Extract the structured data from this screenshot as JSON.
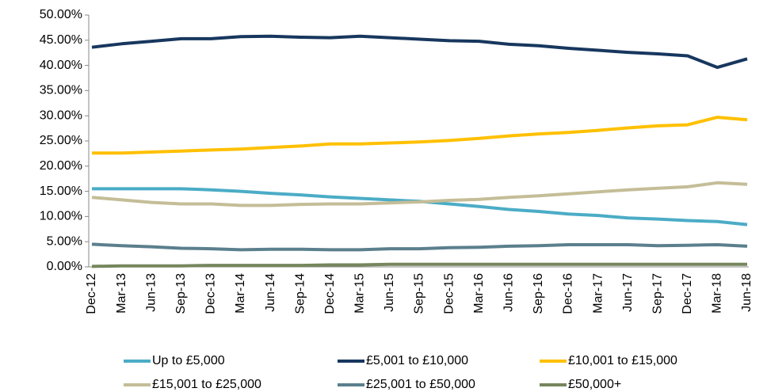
{
  "chart_data": {
    "type": "line",
    "categories": [
      "Dec-12",
      "Mar-13",
      "Jun-13",
      "Sep-13",
      "Dec-13",
      "Mar-14",
      "Jun-14",
      "Sep-14",
      "Dec-14",
      "Mar-15",
      "Jun-15",
      "Sep-15",
      "Dec-15",
      "Mar-16",
      "Jun-16",
      "Sep-16",
      "Dec-16",
      "Mar-17",
      "Jun-17",
      "Sep-17",
      "Dec-17",
      "Mar-18",
      "Jun-18"
    ],
    "series": [
      {
        "name": "Up to £5,000",
        "color": "#4bacc6",
        "values": [
          15.5,
          15.5,
          15.5,
          15.5,
          15.3,
          15.0,
          14.6,
          14.3,
          13.9,
          13.6,
          13.3,
          13.0,
          12.5,
          12.0,
          11.4,
          11.0,
          10.5,
          10.2,
          9.7,
          9.5,
          9.2,
          9.0,
          8.4
        ]
      },
      {
        "name": "£5,001 to £10,000",
        "color": "#17375e",
        "values": [
          43.6,
          44.3,
          44.8,
          45.3,
          45.3,
          45.7,
          45.8,
          45.6,
          45.5,
          45.8,
          45.5,
          45.2,
          44.9,
          44.8,
          44.2,
          43.9,
          43.4,
          43.0,
          42.6,
          42.3,
          41.9,
          39.6,
          41.3
        ]
      },
      {
        "name": "£10,001 to £15,000",
        "color": "#ffc000",
        "values": [
          22.6,
          22.6,
          22.8,
          23.0,
          23.2,
          23.4,
          23.7,
          24.0,
          24.4,
          24.4,
          24.6,
          24.8,
          25.1,
          25.5,
          26.0,
          26.4,
          26.7,
          27.1,
          27.6,
          28.0,
          28.2,
          29.7,
          29.2
        ]
      },
      {
        "name": "£15,001 to £25,000",
        "color": "#c4bd97",
        "values": [
          13.8,
          13.3,
          12.8,
          12.5,
          12.5,
          12.2,
          12.2,
          12.4,
          12.5,
          12.5,
          12.7,
          12.9,
          13.2,
          13.4,
          13.8,
          14.1,
          14.5,
          14.9,
          15.3,
          15.6,
          15.9,
          16.7,
          16.4
        ]
      },
      {
        "name": "£25,001 to £50,000",
        "color": "#5b7f8d",
        "values": [
          4.5,
          4.2,
          4.0,
          3.7,
          3.6,
          3.4,
          3.5,
          3.5,
          3.4,
          3.4,
          3.6,
          3.6,
          3.8,
          3.9,
          4.1,
          4.2,
          4.4,
          4.4,
          4.4,
          4.2,
          4.3,
          4.4,
          4.1
        ]
      },
      {
        "name": "£50,000+",
        "color": "#76865d",
        "values": [
          0.1,
          0.2,
          0.2,
          0.2,
          0.3,
          0.3,
          0.3,
          0.3,
          0.4,
          0.4,
          0.5,
          0.5,
          0.5,
          0.5,
          0.5,
          0.5,
          0.5,
          0.5,
          0.5,
          0.5,
          0.5,
          0.5,
          0.5
        ]
      }
    ],
    "ylim": [
      0,
      50
    ],
    "yticks": [
      {
        "value": 0,
        "label": "0.00%"
      },
      {
        "value": 5,
        "label": "5.00%"
      },
      {
        "value": 10,
        "label": "10.00%"
      },
      {
        "value": 15,
        "label": "15.00%"
      },
      {
        "value": 20,
        "label": "20.00%"
      },
      {
        "value": 25,
        "label": "25.00%"
      },
      {
        "value": 30,
        "label": "30.00%"
      },
      {
        "value": 35,
        "label": "35.00%"
      },
      {
        "value": 40,
        "label": "40.00%"
      },
      {
        "value": 45,
        "label": "45.00%"
      },
      {
        "value": 50,
        "label": "50.00%"
      }
    ],
    "grid": false,
    "legend": "bottom"
  }
}
